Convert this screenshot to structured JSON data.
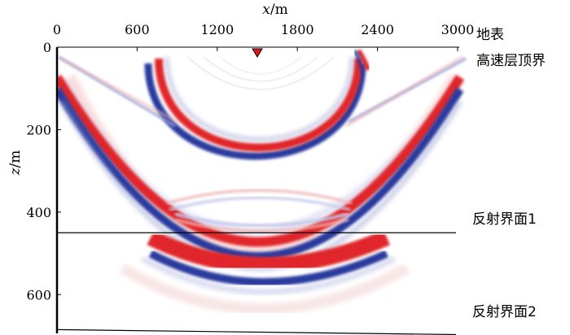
{
  "figure": {
    "x_axis": {
      "variable": "x",
      "unit": "m",
      "range": [
        0,
        3000
      ],
      "ticks": [
        "0",
        "600",
        "1200",
        "1800",
        "2400",
        "3000"
      ]
    },
    "z_axis": {
      "variable": "z",
      "unit": "m",
      "range": [
        0,
        700
      ],
      "ticks": [
        "0",
        "200",
        "400",
        "600"
      ]
    },
    "source": {
      "x": 1500,
      "z": 0,
      "symbol": "triangle-down",
      "color": "#e01919"
    },
    "interfaces": [
      {
        "label": "地表",
        "z_left": 0,
        "z_right": 0
      },
      {
        "label": "高速层顶界",
        "z_left": 0,
        "z_right": 0
      },
      {
        "label": "反射界面1",
        "z_left": 450,
        "z_right": 450
      },
      {
        "label": "反射界面2",
        "z_left": 685,
        "z_right": 697
      }
    ],
    "colormap": {
      "positive": "#e0262a",
      "negative": "#2a3a9e",
      "zero": "#ffffff"
    }
  }
}
